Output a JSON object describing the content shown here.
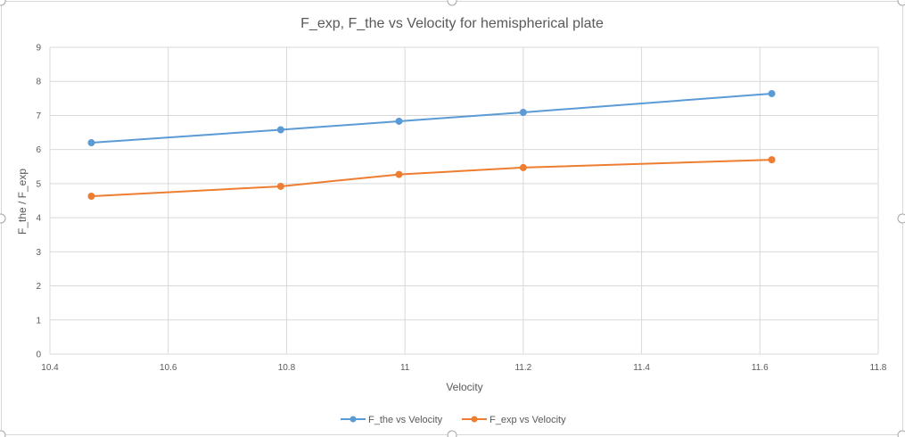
{
  "chart_data": {
    "type": "line",
    "title": "F_exp, F_the vs Velocity for hemispherical plate",
    "xlabel": "Velocity",
    "ylabel": "F_the / F_exp",
    "xlim": [
      10.4,
      11.8
    ],
    "ylim": [
      0,
      9
    ],
    "xticks": [
      "10.4",
      "10.6",
      "10.8",
      "11",
      "11.2",
      "11.4",
      "11.6",
      "11.8"
    ],
    "yticks": [
      "0",
      "1",
      "2",
      "3",
      "4",
      "5",
      "6",
      "7",
      "8",
      "9"
    ],
    "grid": true,
    "legend_position": "bottom",
    "series": [
      {
        "name": "F_the vs Velocity",
        "color": "#5B9BD5",
        "x": [
          10.47,
          10.79,
          10.99,
          11.2,
          11.62
        ],
        "y": [
          6.2,
          6.58,
          6.83,
          7.09,
          7.64
        ]
      },
      {
        "name": "F_exp vs Velocity",
        "color": "#ED7D31",
        "x": [
          10.47,
          10.79,
          10.99,
          11.2,
          11.62
        ],
        "y": [
          4.63,
          4.92,
          5.27,
          5.47,
          5.7
        ]
      }
    ]
  }
}
